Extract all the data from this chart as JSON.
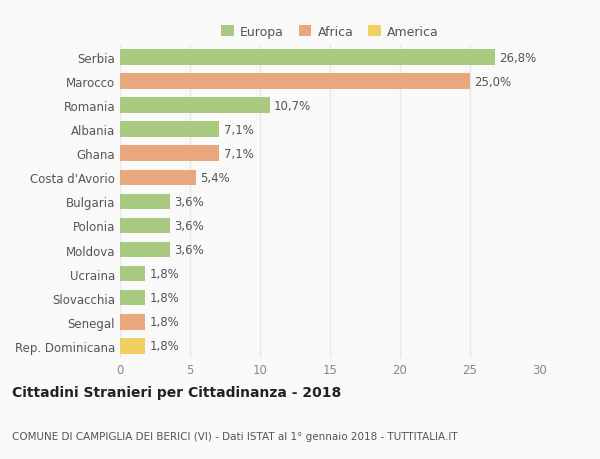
{
  "countries": [
    "Serbia",
    "Marocco",
    "Romania",
    "Albania",
    "Ghana",
    "Costa d'Avorio",
    "Bulgaria",
    "Polonia",
    "Moldova",
    "Ucraina",
    "Slovacchia",
    "Senegal",
    "Rep. Dominicana"
  ],
  "values": [
    26.8,
    25.0,
    10.7,
    7.1,
    7.1,
    5.4,
    3.6,
    3.6,
    3.6,
    1.8,
    1.8,
    1.8,
    1.8
  ],
  "labels": [
    "26,8%",
    "25,0%",
    "10,7%",
    "7,1%",
    "7,1%",
    "5,4%",
    "3,6%",
    "3,6%",
    "3,6%",
    "1,8%",
    "1,8%",
    "1,8%",
    "1,8%"
  ],
  "continents": [
    "Europa",
    "Africa",
    "Europa",
    "Europa",
    "Africa",
    "Africa",
    "Europa",
    "Europa",
    "Europa",
    "Europa",
    "Europa",
    "Africa",
    "America"
  ],
  "colors": {
    "Europa": "#a8c97f",
    "Africa": "#e8a87c",
    "America": "#f0d060"
  },
  "legend_labels": [
    "Europa",
    "Africa",
    "America"
  ],
  "legend_colors": [
    "#a8c97f",
    "#e8a87c",
    "#f0d060"
  ],
  "xlim": [
    0,
    30
  ],
  "xticks": [
    0,
    5,
    10,
    15,
    20,
    25,
    30
  ],
  "title": "Cittadini Stranieri per Cittadinanza - 2018",
  "subtitle": "COMUNE DI CAMPIGLIA DEI BERICI (VI) - Dati ISTAT al 1° gennaio 2018 - TUTTITALIA.IT",
  "background_color": "#f9f9f9",
  "grid_color": "#e8e8e8",
  "bar_height": 0.65,
  "title_fontsize": 10,
  "subtitle_fontsize": 7.5,
  "tick_fontsize": 8.5,
  "label_fontsize": 8.5
}
